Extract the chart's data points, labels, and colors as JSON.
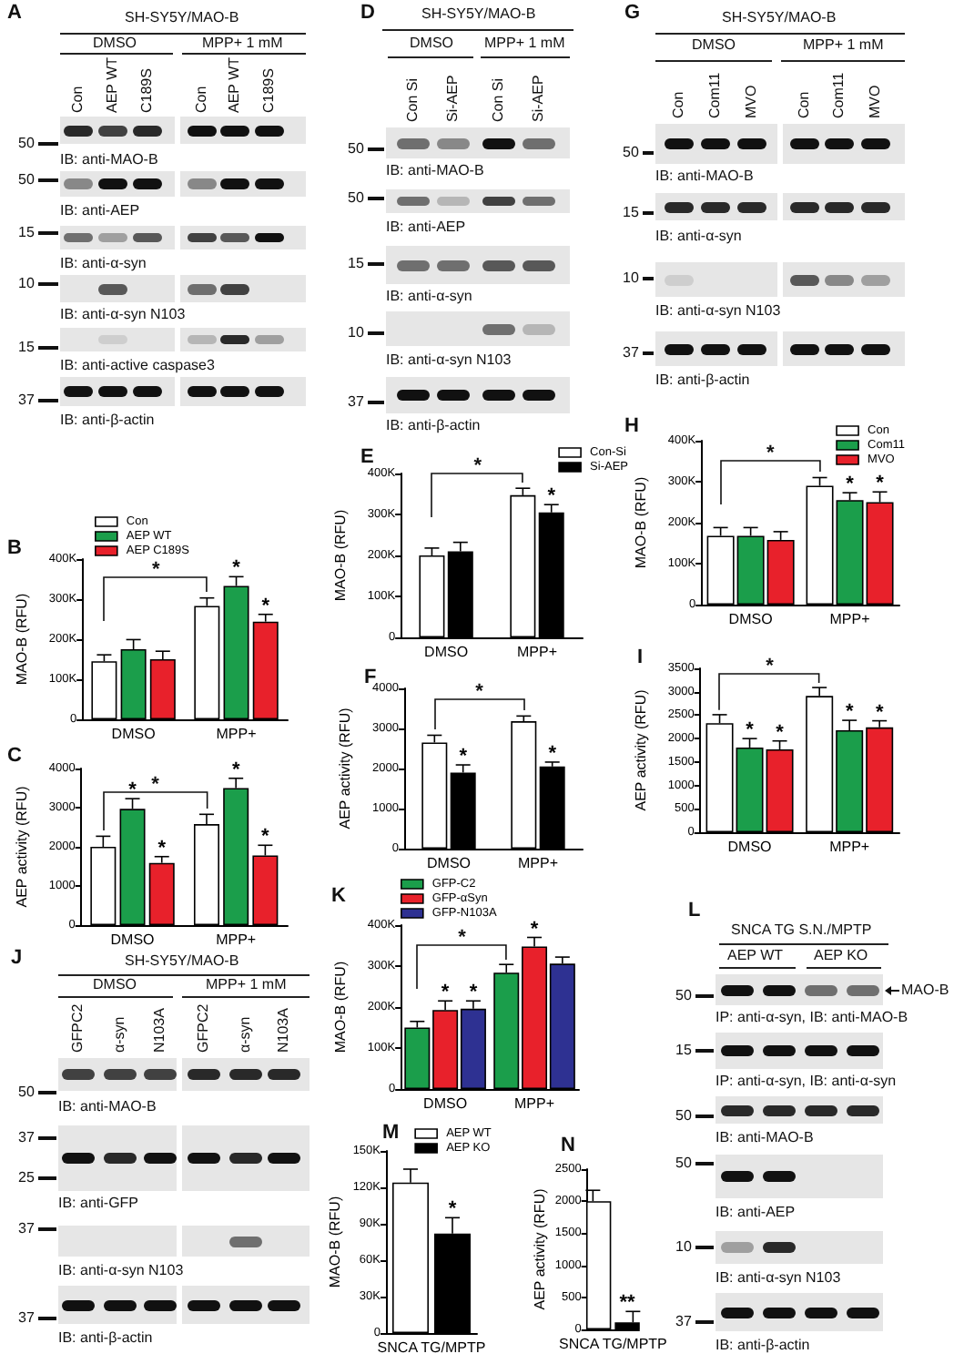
{
  "chart_data": [
    {
      "type": "other",
      "title": "A",
      "subtitle": "SH-SY5Y/MAO-B",
      "annotations": [
        "DMSO",
        "MPP+ 1 mM",
        "Con",
        "AEP WT",
        "C189S",
        "Con",
        "AEP WT",
        "C189S",
        "50",
        "IB: anti-MAO-B",
        "50",
        "IB: anti-AEP",
        "15",
        "IB: anti-α-syn",
        "10",
        "IB: anti-α-syn N103",
        "15",
        "IB: anti-active caspase3",
        "37",
        "IB: anti-β-actin"
      ]
    },
    {
      "type": "bar",
      "title": "B",
      "categories": [
        "DMSO",
        "MPP+"
      ],
      "ylabel": "MAO-B (RFU)",
      "ylim": [
        0,
        400000
      ],
      "yticks": [
        0,
        {
          "value": 100000,
          "label": "100K"
        },
        {
          "value": 200000,
          "label": "200K"
        },
        {
          "value": 300000,
          "label": "300K"
        },
        {
          "value": 400000,
          "label": "400K"
        }
      ],
      "legend": "top left",
      "series": [
        {
          "name": "Con",
          "color": "#ffffff",
          "values": [
            145000,
            283000
          ],
          "errors": [
            [
              145000,
              161000
            ],
            [
              283000,
              303000
            ]
          ]
        },
        {
          "name": "AEP WT",
          "color": "#1b9e4b",
          "values": [
            175000,
            333000
          ],
          "errors": [
            [
              175000,
              199000
            ],
            [
              333000,
              356000
            ]
          ],
          "value_labels": [
            null,
            "*"
          ]
        },
        {
          "name": "AEP C189S",
          "color": "#e8212b",
          "values": [
            150000,
            244000
          ],
          "errors": [
            [
              150000,
              170000
            ],
            [
              244000,
              262000
            ]
          ],
          "value_labels": [
            null,
            "*"
          ]
        }
      ],
      "annotations": [
        "*"
      ]
    },
    {
      "type": "bar",
      "title": "C",
      "categories": [
        "DMSO",
        "MPP+"
      ],
      "ylabel": "AEP activity (RFU)",
      "ylim": [
        0,
        4000
      ],
      "yticks": [
        0,
        1000,
        2000,
        3000,
        4000
      ],
      "series": [
        {
          "color": "#ffffff",
          "values": [
            2000,
            2580
          ],
          "errors": [
            [
              2000,
              2270
            ],
            [
              2580,
              2830
            ]
          ]
        },
        {
          "color": "#1b9e4b",
          "values": [
            2970,
            3500
          ],
          "errors": [
            [
              2970,
              3230
            ],
            [
              3500,
              3750
            ]
          ],
          "value_labels": [
            "*",
            "*"
          ]
        },
        {
          "color": "#e8212b",
          "values": [
            1590,
            1780
          ],
          "errors": [
            [
              1590,
              1750
            ],
            [
              1780,
              2040
            ]
          ],
          "value_labels": [
            "*",
            "*"
          ]
        }
      ],
      "annotations": [
        "*"
      ]
    },
    {
      "type": "other",
      "title": "D",
      "subtitle": "SH-SY5Y/MAO-B",
      "annotations": [
        "DMSO",
        "MPP+ 1 mM",
        "Con Si",
        "Si-AEP",
        "Con Si",
        "Si-AEP",
        "50",
        "IB: anti-MAO-B",
        "50",
        "IB: anti-AEP",
        "15",
        "IB: anti-α-syn",
        "10",
        "IB: anti-α-syn N103",
        "37",
        "IB: anti-β-actin"
      ]
    },
    {
      "type": "bar",
      "title": "E",
      "categories": [
        "DMSO",
        "MPP+"
      ],
      "ylabel": "MAO-B (RFU)",
      "ylim": [
        0,
        400000
      ],
      "yticks": [
        0,
        {
          "value": 100000,
          "label": "100K"
        },
        {
          "value": 200000,
          "label": "200K"
        },
        {
          "value": 300000,
          "label": "300K"
        },
        {
          "value": 400000,
          "label": "400K"
        }
      ],
      "legend": "top right",
      "series": [
        {
          "name": "Con-Si",
          "color": "#ffffff",
          "values": [
            200000,
            347000
          ],
          "errors": [
            [
              200000,
              218000
            ],
            [
              347000,
              364000
            ]
          ]
        },
        {
          "name": "Si-AEP",
          "color": "#000000",
          "values": [
            210000,
            305000
          ],
          "errors": [
            [
              210000,
              232000
            ],
            [
              305000,
              324000
            ]
          ],
          "value_labels": [
            null,
            "*"
          ]
        }
      ],
      "annotations": [
        "*"
      ]
    },
    {
      "type": "bar",
      "title": "F",
      "categories": [
        "DMSO",
        "MPP+"
      ],
      "ylabel": "AEP activity (RFU)",
      "ylim": [
        0,
        4000
      ],
      "yticks": [
        0,
        1000,
        2000,
        3000,
        4000
      ],
      "series": [
        {
          "color": "#ffffff",
          "values": [
            2650,
            3180
          ],
          "errors": [
            [
              2650,
              2830
            ],
            [
              3180,
              3310
            ]
          ]
        },
        {
          "color": "#000000",
          "values": [
            1900,
            2050
          ],
          "errors": [
            [
              1900,
              2090
            ],
            [
              2050,
              2160
            ]
          ],
          "value_labels": [
            "*",
            "*"
          ]
        }
      ],
      "annotations": [
        "*"
      ]
    },
    {
      "type": "other",
      "title": "G",
      "subtitle": "SH-SY5Y/MAO-B",
      "annotations": [
        "DMSO",
        "MPP+ 1 mM",
        "Con",
        "Com11",
        "MVO",
        "Con",
        "Com11",
        "MVO",
        "50",
        "IB: anti-MAO-B",
        "15",
        "IB: anti-α-syn",
        "10",
        "IB: anti-α-syn N103",
        "37",
        "IB: anti-β-actin"
      ]
    },
    {
      "type": "bar",
      "title": "H",
      "categories": [
        "DMSO",
        "MPP+"
      ],
      "ylabel": "MAO-B (RFU)",
      "ylim": [
        0,
        400000
      ],
      "yticks": [
        0,
        {
          "value": 100000,
          "label": "100K"
        },
        {
          "value": 200000,
          "label": "200K"
        },
        {
          "value": 300000,
          "label": "300K"
        },
        {
          "value": 400000,
          "label": "400K"
        }
      ],
      "legend": "top right",
      "series": [
        {
          "name": "Con",
          "color": "#ffffff",
          "values": [
            168000,
            290000
          ],
          "errors": [
            [
              168000,
              188000
            ],
            [
              290000,
              310000
            ]
          ]
        },
        {
          "name": "Com11",
          "color": "#1b9e4b",
          "values": [
            168000,
            255000
          ],
          "errors": [
            [
              168000,
              188000
            ],
            [
              255000,
              273000
            ]
          ],
          "value_labels": [
            null,
            "*"
          ]
        },
        {
          "name": "MVO",
          "color": "#e8212b",
          "values": [
            158000,
            250000
          ],
          "errors": [
            [
              158000,
              178000
            ],
            [
              250000,
              275000
            ]
          ],
          "value_labels": [
            null,
            "*"
          ]
        }
      ],
      "annotations": [
        "*"
      ]
    },
    {
      "type": "bar",
      "title": "I",
      "categories": [
        "DMSO",
        "MPP+"
      ],
      "ylabel": "AEP activity (RFU)",
      "ylim": [
        0,
        3500
      ],
      "yticks": [
        0,
        500,
        1000,
        1500,
        2000,
        2500,
        3000,
        3500
      ],
      "series": [
        {
          "color": "#ffffff",
          "values": [
            2330,
            2910
          ],
          "errors": [
            [
              2330,
              2510
            ],
            [
              2910,
              3090
            ]
          ]
        },
        {
          "color": "#1b9e4b",
          "values": [
            1810,
            2180
          ],
          "errors": [
            [
              1810,
              2000
            ],
            [
              2180,
              2390
            ]
          ],
          "value_labels": [
            "*",
            "*"
          ]
        },
        {
          "color": "#e8212b",
          "values": [
            1770,
            2240
          ],
          "errors": [
            [
              1770,
              1950
            ],
            [
              2240,
              2380
            ]
          ],
          "value_labels": [
            "*",
            "*"
          ]
        }
      ],
      "annotations": [
        "*"
      ]
    },
    {
      "type": "other",
      "title": "J",
      "subtitle": "SH-SY5Y/MAO-B",
      "annotations": [
        "DMSO",
        "MPP+ 1 mM",
        "GFPC2",
        "α-syn",
        "N103A",
        "GFPC2",
        "α-syn",
        "N103A",
        "50",
        "IB: anti-MAO-B",
        "37",
        "25",
        "IB: anti-GFP",
        "37",
        "IB: anti-α-syn N103",
        "37",
        "IB: anti-β-actin"
      ]
    },
    {
      "type": "bar",
      "title": "K",
      "categories": [
        "DMSO",
        "MPP+"
      ],
      "ylabel": "MAO-B (RFU)",
      "ylim": [
        0,
        400000
      ],
      "yticks": [
        0,
        {
          "value": 100000,
          "label": "100K"
        },
        {
          "value": 200000,
          "label": "200K"
        },
        {
          "value": 300000,
          "label": "300K"
        },
        {
          "value": 400000,
          "label": "400K"
        }
      ],
      "legend": "top left",
      "series": [
        {
          "name": "GFP-C2",
          "color": "#1b9e4b",
          "values": [
            150000,
            284000
          ],
          "errors": [
            [
              150000,
              165000
            ],
            [
              284000,
              304000
            ]
          ]
        },
        {
          "name": "GFP-αSyn",
          "color": "#e8212b",
          "values": [
            193000,
            348000
          ],
          "errors": [
            [
              193000,
              215000
            ],
            [
              348000,
              370000
            ]
          ],
          "value_labels": [
            "*",
            "*"
          ]
        },
        {
          "name": "GFP-N103A",
          "color": "#2e3192",
          "values": [
            196000,
            306000
          ],
          "errors": [
            [
              196000,
              215000
            ],
            [
              306000,
              322000
            ]
          ],
          "value_labels": [
            "*",
            null
          ]
        }
      ],
      "annotations": [
        "*"
      ]
    },
    {
      "type": "other",
      "title": "L",
      "subtitle": "SNCA TG S.N./MPTP",
      "annotations": [
        "AEP WT",
        "AEP KO",
        "50",
        "MAO-B",
        "IP: anti-α-syn, IB: anti-MAO-B",
        "15",
        "IP: anti-α-syn, IB: anti-α-syn",
        "50",
        "IB: anti-MAO-B",
        "50",
        "IB: anti-AEP",
        "10",
        "IB: anti-α-syn N103",
        "37",
        "IB: anti-β-actin"
      ]
    },
    {
      "type": "bar",
      "title": "M",
      "categories": [
        "SNCA TG/MPTP"
      ],
      "ylabel": "MAO-B (RFU)",
      "ylim": [
        0,
        150000
      ],
      "yticks": [
        0,
        {
          "value": 30000,
          "label": "30K"
        },
        {
          "value": 60000,
          "label": "60K"
        },
        {
          "value": 90000,
          "label": "90K"
        },
        {
          "value": 120000,
          "label": "120K"
        },
        {
          "value": 150000,
          "label": "150K"
        }
      ],
      "legend": "top right",
      "series": [
        {
          "name": "AEP WT",
          "color": "#ffffff",
          "values": [
            124000
          ],
          "errors": [
            [
              124000,
              135000
            ]
          ]
        },
        {
          "name": "AEP KO",
          "color": "#000000",
          "values": [
            82000
          ],
          "errors": [
            [
              82000,
              95000
            ]
          ],
          "value_labels": [
            "*"
          ]
        }
      ]
    },
    {
      "type": "bar",
      "title": "N",
      "categories": [
        "SNCA TG/MPTP"
      ],
      "ylabel": "AEP activity (RFU)",
      "ylim": [
        0,
        2500
      ],
      "yticks": [
        0,
        500,
        1000,
        1500,
        2000,
        2500
      ],
      "series": [
        {
          "color": "#ffffff",
          "values": [
            2000
          ],
          "errors": [
            [
              2000,
              2170
            ]
          ]
        },
        {
          "color": "#000000",
          "values": [
            110
          ],
          "errors": [
            [
              110,
              280
            ]
          ],
          "value_labels": [
            "**"
          ]
        }
      ]
    }
  ]
}
